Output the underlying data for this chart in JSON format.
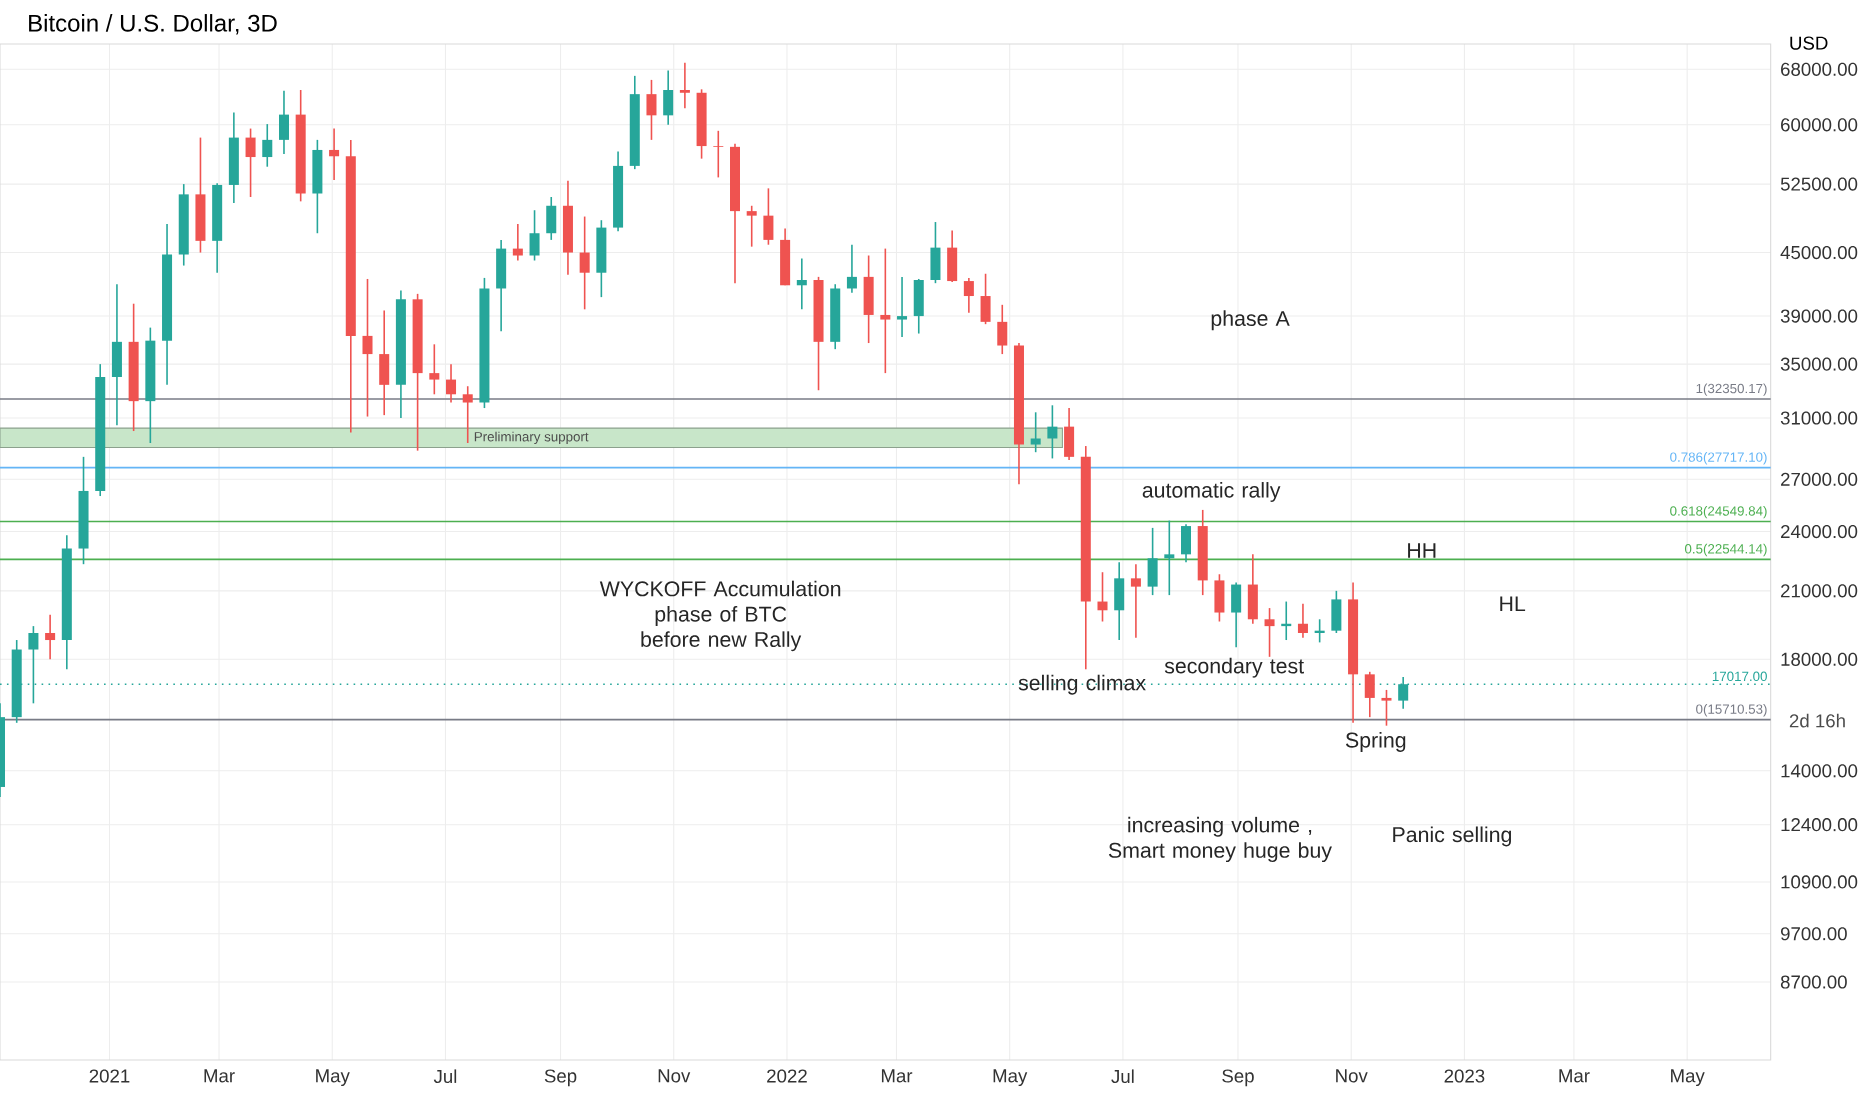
{
  "chart_data": {
    "type": "candlestick",
    "title": "Bitcoin / U.S. Dollar, 3D",
    "ylabel": "USD",
    "x": [
      "2020-11-03",
      "2020-11-12",
      "2020-11-21",
      "2020-11-30",
      "2020-12-09",
      "2020-12-18",
      "2020-12-27",
      "2021-01-05",
      "2021-01-14",
      "2021-01-23",
      "2021-02-01",
      "2021-02-10",
      "2021-02-19",
      "2021-02-28",
      "2021-03-09",
      "2021-03-18",
      "2021-03-27",
      "2021-04-05",
      "2021-04-14",
      "2021-04-23",
      "2021-05-02",
      "2021-05-11",
      "2021-05-20",
      "2021-05-29",
      "2021-06-07",
      "2021-06-16",
      "2021-06-25",
      "2021-07-04",
      "2021-07-13",
      "2021-07-22",
      "2021-07-31",
      "2021-08-09",
      "2021-08-18",
      "2021-08-27",
      "2021-09-05",
      "2021-09-14",
      "2021-09-23",
      "2021-10-02",
      "2021-10-11",
      "2021-10-20",
      "2021-10-29",
      "2021-11-07",
      "2021-11-16",
      "2021-11-25",
      "2021-12-04",
      "2021-12-13",
      "2021-12-22",
      "2021-12-31",
      "2022-01-09",
      "2022-01-18",
      "2022-01-27",
      "2022-02-05",
      "2022-02-14",
      "2022-02-23",
      "2022-03-04",
      "2022-03-13",
      "2022-03-22",
      "2022-03-31",
      "2022-04-09",
      "2022-04-18",
      "2022-04-27",
      "2022-05-06",
      "2022-05-15",
      "2022-05-24",
      "2022-06-02",
      "2022-06-11",
      "2022-06-20",
      "2022-06-29",
      "2022-07-08",
      "2022-07-17",
      "2022-07-26",
      "2022-08-04",
      "2022-08-13",
      "2022-08-22",
      "2022-08-31",
      "2022-09-09",
      "2022-09-18",
      "2022-09-27",
      "2022-10-06",
      "2022-10-15",
      "2022-10-24",
      "2022-11-02",
      "2022-11-11",
      "2022-11-20",
      "2022-11-29"
    ],
    "ohlc": [
      [
        13500,
        16300,
        13200,
        15800
      ],
      [
        15800,
        18800,
        15600,
        18400
      ],
      [
        18400,
        19400,
        16300,
        19100
      ],
      [
        19100,
        19900,
        18000,
        18800
      ],
      [
        18800,
        23800,
        17600,
        23100
      ],
      [
        23100,
        28400,
        22300,
        26300
      ],
      [
        26300,
        35000,
        26000,
        34000
      ],
      [
        34000,
        41900,
        30500,
        36800
      ],
      [
        36800,
        40100,
        30100,
        32200
      ],
      [
        32200,
        38000,
        29300,
        36900
      ],
      [
        36900,
        48000,
        33400,
        44800
      ],
      [
        44800,
        52500,
        43700,
        51300
      ],
      [
        51300,
        58300,
        45000,
        46200
      ],
      [
        46200,
        52600,
        43000,
        52400
      ],
      [
        52400,
        61700,
        50300,
        58300
      ],
      [
        58300,
        59500,
        51000,
        55800
      ],
      [
        55800,
        60100,
        54600,
        58000
      ],
      [
        58000,
        64800,
        56200,
        61400
      ],
      [
        61400,
        64900,
        50500,
        51400
      ],
      [
        51400,
        58000,
        47000,
        56700
      ],
      [
        56700,
        59500,
        53000,
        55900
      ],
      [
        55900,
        58000,
        30000,
        37300
      ],
      [
        37300,
        42400,
        31100,
        35800
      ],
      [
        35800,
        39500,
        31200,
        33400
      ],
      [
        33400,
        41300,
        31000,
        40500
      ],
      [
        40500,
        41000,
        28800,
        34300
      ],
      [
        34300,
        36600,
        32700,
        33800
      ],
      [
        33800,
        35000,
        32100,
        32700
      ],
      [
        32700,
        33300,
        29300,
        32100
      ],
      [
        32100,
        42500,
        31700,
        41500
      ],
      [
        41500,
        46300,
        37700,
        45400
      ],
      [
        45400,
        48000,
        44200,
        44700
      ],
      [
        44700,
        49500,
        44200,
        47000
      ],
      [
        47000,
        51000,
        46300,
        50000
      ],
      [
        50000,
        52900,
        42800,
        45000
      ],
      [
        45000,
        48800,
        39600,
        43000
      ],
      [
        43000,
        48400,
        40700,
        47600
      ],
      [
        47600,
        56500,
        47200,
        54700
      ],
      [
        54700,
        67000,
        54300,
        64300
      ],
      [
        64300,
        66400,
        58000,
        61300
      ],
      [
        61300,
        67800,
        60000,
        64900
      ],
      [
        64900,
        69000,
        62300,
        64500
      ],
      [
        64500,
        65000,
        55600,
        57200
      ],
      [
        57200,
        59200,
        53300,
        57100
      ],
      [
        57100,
        57500,
        42000,
        49400
      ],
      [
        49400,
        50000,
        45600,
        48900
      ],
      [
        48900,
        52000,
        45800,
        46300
      ],
      [
        46300,
        47500,
        41800,
        41800
      ],
      [
        41800,
        44400,
        39600,
        42300
      ],
      [
        42300,
        42600,
        33000,
        36800
      ],
      [
        36800,
        41900,
        36200,
        41500
      ],
      [
        41500,
        45800,
        41100,
        42600
      ],
      [
        42600,
        44700,
        36700,
        39100
      ],
      [
        39100,
        45400,
        34300,
        38700
      ],
      [
        38700,
        42600,
        37200,
        39000
      ],
      [
        39000,
        42400,
        37500,
        42300
      ],
      [
        42300,
        48200,
        42000,
        45500
      ],
      [
        45500,
        47300,
        42100,
        42200
      ],
      [
        42200,
        42500,
        39300,
        40800
      ],
      [
        40800,
        42900,
        38300,
        38500
      ],
      [
        38500,
        40000,
        35800,
        36500
      ],
      [
        36500,
        36700,
        26700,
        29200
      ],
      [
        29200,
        31400,
        28700,
        29600
      ],
      [
        29600,
        31900,
        28300,
        30400
      ],
      [
        30400,
        31700,
        28200,
        28400
      ],
      [
        28400,
        29100,
        17600,
        20500
      ],
      [
        20500,
        21900,
        19600,
        20100
      ],
      [
        20100,
        22400,
        18800,
        21600
      ],
      [
        21600,
        22300,
        18900,
        21200
      ],
      [
        21200,
        24200,
        20800,
        22600
      ],
      [
        22600,
        24600,
        20800,
        22800
      ],
      [
        22800,
        24400,
        22400,
        24300
      ],
      [
        24300,
        25200,
        20800,
        21500
      ],
      [
        21500,
        21800,
        19600,
        20000
      ],
      [
        20000,
        21400,
        18500,
        21300
      ],
      [
        21300,
        22800,
        19500,
        19700
      ],
      [
        19700,
        20200,
        18100,
        19400
      ],
      [
        19400,
        20500,
        18800,
        19500
      ],
      [
        19500,
        20400,
        18900,
        19100
      ],
      [
        19100,
        19700,
        18700,
        19200
      ],
      [
        19200,
        21000,
        19100,
        20600
      ],
      [
        20600,
        21400,
        15600,
        17400
      ],
      [
        17400,
        17500,
        15800,
        16500
      ],
      [
        16500,
        16800,
        15500,
        16400
      ],
      [
        16400,
        17300,
        16100,
        17017
      ]
    ],
    "colors": [
      "#26a69a",
      "#26a69a",
      "#26a69a",
      "#ef5350",
      "#26a69a",
      "#26a69a",
      "#26a69a",
      "#26a69a",
      "#ef5350",
      "#26a69a",
      "#26a69a",
      "#26a69a",
      "#ef5350",
      "#26a69a",
      "#26a69a",
      "#ef5350",
      "#26a69a",
      "#26a69a",
      "#ef5350",
      "#26a69a",
      "#ef5350",
      "#ef5350",
      "#ef5350",
      "#ef5350",
      "#26a69a",
      "#ef5350",
      "#ef5350",
      "#ef5350",
      "#ef5350",
      "#26a69a",
      "#26a69a",
      "#ef5350",
      "#26a69a",
      "#26a69a",
      "#ef5350",
      "#ef5350",
      "#26a69a",
      "#26a69a",
      "#26a69a",
      "#ef5350",
      "#26a69a",
      "#ef5350",
      "#ef5350",
      "#ef5350",
      "#ef5350",
      "#ef5350",
      "#ef5350",
      "#ef5350",
      "#26a69a",
      "#ef5350",
      "#26a69a",
      "#26a69a",
      "#ef5350",
      "#ef5350",
      "#26a69a",
      "#26a69a",
      "#26a69a",
      "#ef5350",
      "#ef5350",
      "#ef5350",
      "#ef5350",
      "#ef5350",
      "#26a69a",
      "#26a69a",
      "#ef5350",
      "#ef5350",
      "#ef5350",
      "#26a69a",
      "#ef5350",
      "#26a69a",
      "#26a69a",
      "#26a69a",
      "#ef5350",
      "#ef5350",
      "#26a69a",
      "#ef5350",
      "#ef5350",
      "#26a69a",
      "#ef5350",
      "#26a69a",
      "#26a69a",
      "#ef5350",
      "#ef5350",
      "#ef5350",
      "#26a69a"
    ],
    "log": true,
    "xlim": [
      "2020-11-03",
      "2023-06-15"
    ],
    "xticks": [
      {
        "value": "2021-01-01",
        "label": "2021"
      },
      {
        "value": "2021-03-01",
        "label": "Mar"
      },
      {
        "value": "2021-05-01",
        "label": "May"
      },
      {
        "value": "2021-07-01",
        "label": "Jul"
      },
      {
        "value": "2021-09-01",
        "label": "Sep"
      },
      {
        "value": "2021-11-01",
        "label": "Nov"
      },
      {
        "value": "2022-01-01",
        "label": "2022"
      },
      {
        "value": "2022-03-01",
        "label": "Mar"
      },
      {
        "value": "2022-05-01",
        "label": "May"
      },
      {
        "value": "2022-07-01",
        "label": "Jul"
      },
      {
        "value": "2022-09-01",
        "label": "Sep"
      },
      {
        "value": "2022-11-01",
        "label": "Nov"
      },
      {
        "value": "2023-01-01",
        "label": "2023"
      },
      {
        "value": "2023-03-01",
        "label": "Mar"
      },
      {
        "value": "2023-05-01",
        "label": "May"
      }
    ],
    "ylim": [
      7300,
      72000
    ],
    "yticks": [
      {
        "value": 8700,
        "label": "8700.00"
      },
      {
        "value": 9700,
        "label": "9700.00"
      },
      {
        "value": 10900,
        "label": "10900.00"
      },
      {
        "value": 12400,
        "label": "12400.00"
      },
      {
        "value": 14000,
        "label": "14000.00"
      },
      {
        "value": 18000,
        "label": "18000.00"
      },
      {
        "value": 21000,
        "label": "21000.00"
      },
      {
        "value": 24000,
        "label": "24000.00"
      },
      {
        "value": 27000,
        "label": "27000.00"
      },
      {
        "value": 31000,
        "label": "31000.00"
      },
      {
        "value": 35000,
        "label": "35000.00"
      },
      {
        "value": 39000,
        "label": "39000.00"
      },
      {
        "value": 45000,
        "label": "45000.00"
      },
      {
        "value": 52500,
        "label": "52500.00"
      },
      {
        "value": 60000,
        "label": "60000.00"
      },
      {
        "value": 68000,
        "label": "68000.00"
      }
    ],
    "grid": true,
    "ref_lines": [
      {
        "axis": "y",
        "value": 32350.17,
        "label": "1(32350.17)",
        "color": "#787b86"
      },
      {
        "axis": "y",
        "value": 27717.1,
        "label": "0.786(27717.10)",
        "color": "#64b5f6"
      },
      {
        "axis": "y",
        "value": 24549.84,
        "label": "0.618(24549.84)",
        "color": "#4caf50"
      },
      {
        "axis": "y",
        "value": 22544.14,
        "label": "0.5(22544.14)",
        "color": "#4caf50"
      },
      {
        "axis": "y",
        "value": 17017,
        "label": "17017.00",
        "color": "#26a69a",
        "line_style": "dotted"
      },
      {
        "axis": "y",
        "value": 15710.53,
        "label": "0(15710.53)",
        "color": "#787b86"
      }
    ],
    "bands": [
      {
        "axis": "y",
        "from": 29000,
        "to": 30300,
        "label": "Preliminary support",
        "color": "#c8e6c9"
      }
    ],
    "annotations": [
      "phase A",
      "automatic rally",
      "WYCKOFF Accumulation phase of BTC before new Rally",
      {
        "text": "selling climax",
        "x": "2022-06-09",
        "y": 17000
      },
      "secondary test",
      {
        "text": "HH",
        "x": "2022-12-09",
        "y": 23000
      },
      "HL",
      "Spring",
      "increasing volume , Smart money huge buy",
      "Panic selling",
      "2d 16h"
    ]
  }
}
